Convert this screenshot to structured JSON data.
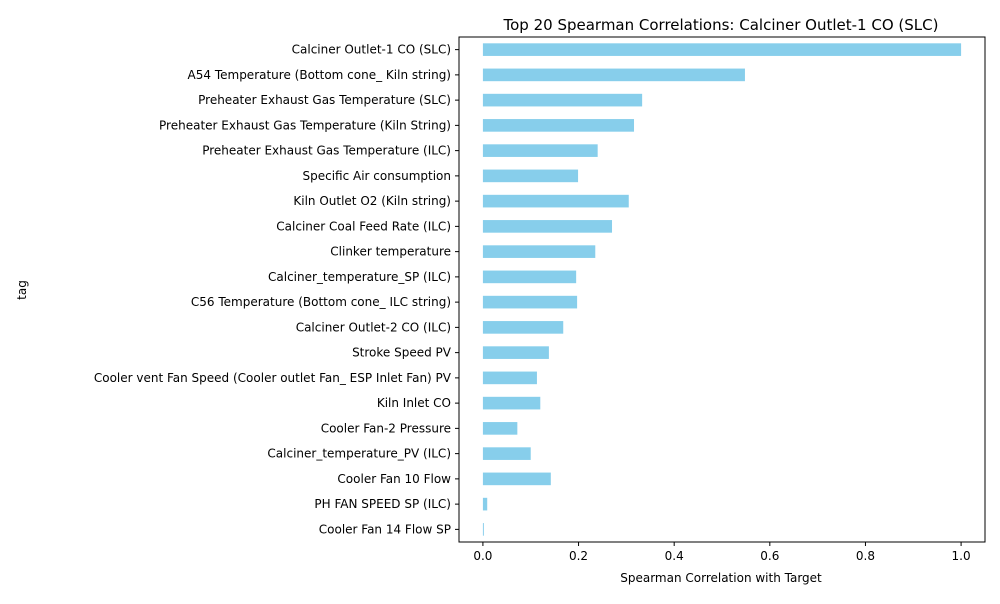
{
  "chart_data": {
    "type": "bar",
    "orientation": "horizontal",
    "title": "Top 20 Spearman Correlations: Calciner Outlet-1 CO (SLC)",
    "xlabel": "Spearman Correlation with Target",
    "ylabel": "tag",
    "xlim": [
      -0.05,
      1.05
    ],
    "xticks": [
      0.0,
      0.2,
      0.4,
      0.6,
      0.8,
      1.0
    ],
    "xtick_labels": [
      "0.0",
      "0.2",
      "0.4",
      "0.6",
      "0.8",
      "1.0"
    ],
    "grid": false,
    "bar_color": "#87CEEB",
    "categories": [
      "Calciner Outlet-1 CO (SLC)",
      "A54 Temperature (Bottom cone_ Kiln string)",
      "Preheater Exhaust Gas Temperature (SLC)",
      "Preheater Exhaust Gas Temperature  (Kiln String)",
      "Preheater Exhaust Gas Temperature (ILC)",
      "Specific Air consumption",
      "Kiln Outlet O2 (Kiln string)",
      "Calciner Coal Feed Rate (ILC)",
      "Clinker temperature",
      "Calciner_temperature_SP (ILC)",
      "C56 Temperature (Bottom cone_ ILC string)",
      "Calciner Outlet-2 CO (ILC)",
      "Stroke Speed PV",
      "Cooler vent Fan Speed (Cooler outlet Fan_ ESP Inlet Fan) PV",
      "Kiln Inlet CO",
      "Cooler Fan-2 Pressure",
      "Calciner_temperature_PV (ILC)",
      "Cooler Fan 10 Flow",
      "PH FAN SPEED SP (ILC)",
      "Cooler Fan 14 Flow SP"
    ],
    "values": [
      1.0,
      0.548,
      0.333,
      0.316,
      0.24,
      0.199,
      0.305,
      0.27,
      0.235,
      0.195,
      0.197,
      0.168,
      0.138,
      0.113,
      0.12,
      0.072,
      0.1,
      0.142,
      0.009,
      0.002
    ]
  }
}
